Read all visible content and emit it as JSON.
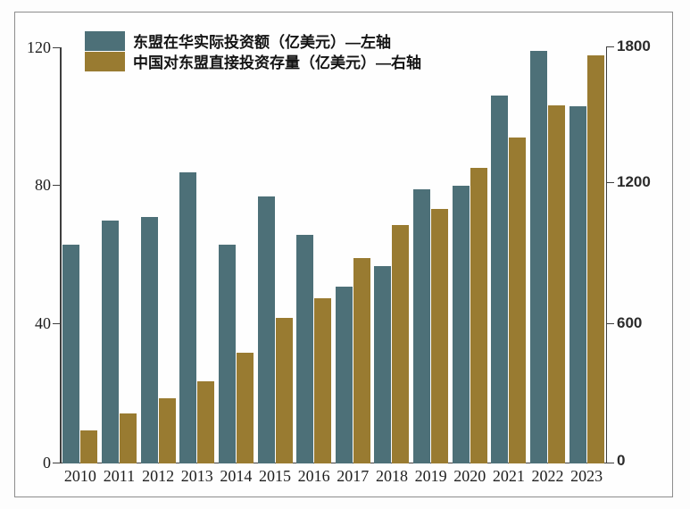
{
  "legend": {
    "items": [
      {
        "label": "东盟在华实际投资额（亿美元）—左轴",
        "color": "#4d7078"
      },
      {
        "label": "中国对东盟直接投资存量（亿美元）—右轴",
        "color": "#997b31"
      }
    ]
  },
  "chart_data": {
    "type": "bar",
    "title": "",
    "categories": [
      "2010",
      "2011",
      "2012",
      "2013",
      "2014",
      "2015",
      "2016",
      "2017",
      "2018",
      "2019",
      "2020",
      "2021",
      "2022",
      "2023"
    ],
    "series": [
      {
        "name": "东盟在华实际投资额（亿美元）—左轴",
        "axis": "left",
        "color": "#4d7078",
        "values": [
          63,
          70,
          71,
          84,
          63,
          77,
          66,
          51,
          57,
          79,
          80,
          106,
          119,
          103
        ]
      },
      {
        "name": "中国对东盟直接投资存量（亿美元）—右轴",
        "axis": "right",
        "color": "#997b31",
        "values": [
          143,
          215,
          283,
          357,
          480,
          630,
          715,
          890,
          1030,
          1100,
          1280,
          1410,
          1550,
          1765
        ]
      }
    ],
    "left_axis": {
      "ticks": [
        0,
        40,
        80,
        120
      ],
      "max": 120
    },
    "right_axis": {
      "ticks": [
        0,
        600,
        1200,
        1800
      ],
      "max": 1800
    },
    "grid": false,
    "legend_position": "top-left"
  }
}
